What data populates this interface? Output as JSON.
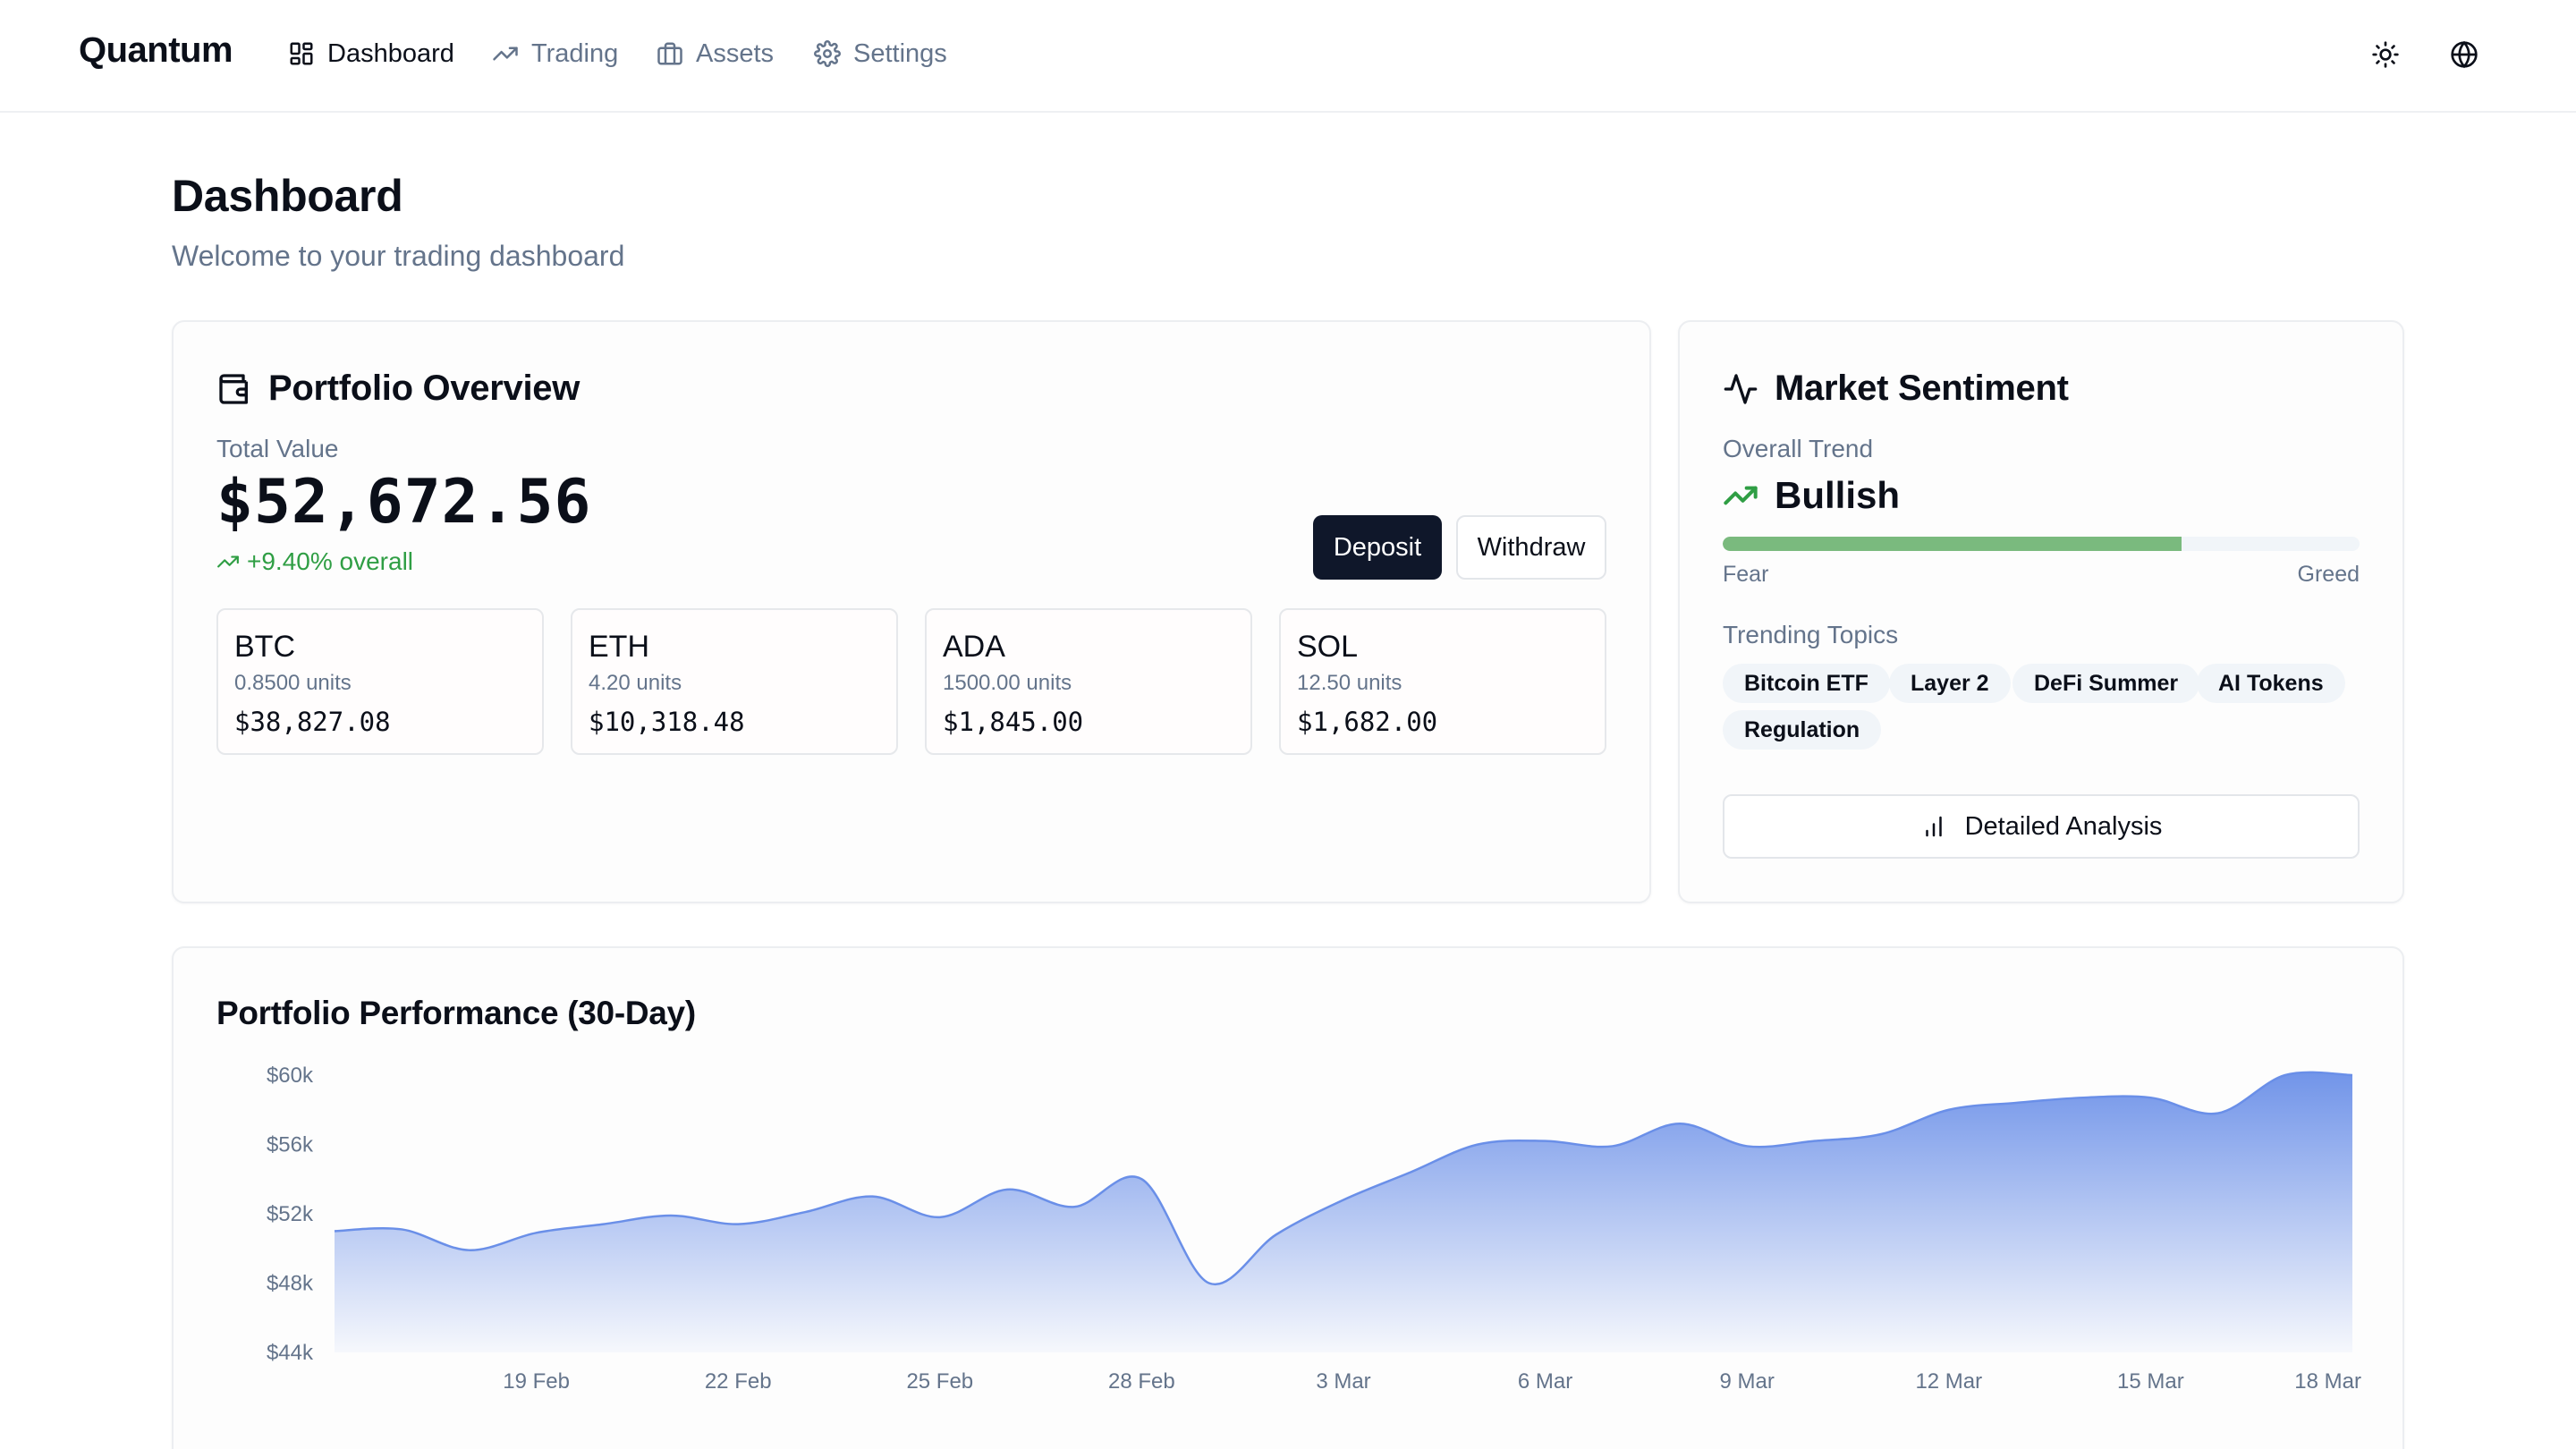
{
  "nav": {
    "brand": "Quantum",
    "items": [
      {
        "label": "Dashboard",
        "icon": "grid-icon"
      },
      {
        "label": "Trading",
        "icon": "trending-up-icon"
      },
      {
        "label": "Assets",
        "icon": "briefcase-icon"
      },
      {
        "label": "Settings",
        "icon": "gear-icon"
      }
    ],
    "active": "Dashboard",
    "right_icons": [
      "sun-icon",
      "globe-icon"
    ]
  },
  "page": {
    "title": "Dashboard",
    "subtitle": "Welcome to your trading dashboard"
  },
  "portfolio": {
    "title": "Portfolio Overview",
    "total_label": "Total Value",
    "total_value": "$52,672.56",
    "change": "+9.40% overall",
    "deposit_label": "Deposit",
    "withdraw_label": "Withdraw",
    "assets": [
      {
        "symbol": "BTC",
        "units": "0.8500 units",
        "value": "$38,827.08"
      },
      {
        "symbol": "ETH",
        "units": "4.20 units",
        "value": "$10,318.48"
      },
      {
        "symbol": "ADA",
        "units": "1500.00 units",
        "value": "$1,845.00"
      },
      {
        "symbol": "SOL",
        "units": "12.50 units",
        "value": "$1,682.00"
      }
    ]
  },
  "sentiment": {
    "title": "Market Sentiment",
    "trend_label": "Overall Trend",
    "trend": "Bullish",
    "meter_fraction": 0.72,
    "meter_low": "Fear",
    "meter_high": "Greed",
    "topics_label": "Trending Topics",
    "topics": [
      "Bitcoin ETF",
      "Layer 2",
      "DeFi Summer",
      "AI Tokens",
      "Regulation"
    ],
    "analysis_label": "Detailed Analysis",
    "colors": {
      "positive": "#2f9e44",
      "meter": "#7aba7e"
    }
  },
  "chart_data": {
    "type": "area",
    "title": "Portfolio Performance (30-Day)",
    "x": [
      "16 Feb",
      "17 Feb",
      "18 Feb",
      "19 Feb",
      "20 Feb",
      "21 Feb",
      "22 Feb",
      "23 Feb",
      "24 Feb",
      "25 Feb",
      "26 Feb",
      "27 Feb",
      "28 Feb",
      "1 Mar",
      "2 Mar",
      "3 Mar",
      "4 Mar",
      "5 Mar",
      "6 Mar",
      "7 Mar",
      "8 Mar",
      "9 Mar",
      "10 Mar",
      "11 Mar",
      "12 Mar",
      "13 Mar",
      "14 Mar",
      "15 Mar",
      "16 Mar",
      "17 Mar",
      "18 Mar"
    ],
    "values": [
      51000,
      51100,
      49900,
      50900,
      51400,
      51900,
      51400,
      52100,
      53000,
      51800,
      53400,
      52400,
      54000,
      48000,
      50800,
      52800,
      54400,
      56000,
      56200,
      55900,
      57200,
      55900,
      56200,
      56600,
      58000,
      58400,
      58700,
      58700,
      57800,
      60000,
      60000
    ],
    "x_tick_labels": [
      "19 Feb",
      "22 Feb",
      "25 Feb",
      "28 Feb",
      "3 Mar",
      "6 Mar",
      "9 Mar",
      "12 Mar",
      "15 Mar",
      "18 Mar"
    ],
    "y_tick_labels": [
      "$60k",
      "$56k",
      "$52k",
      "$48k",
      "$44k"
    ],
    "ylim": [
      44000,
      60000
    ],
    "color": "#6a8fe8",
    "grid": false
  }
}
